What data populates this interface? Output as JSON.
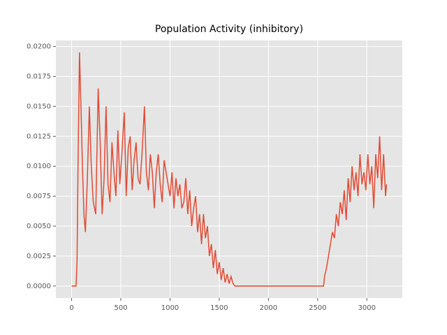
{
  "chart_data": {
    "type": "line",
    "title": "Population Activity (inhibitory)",
    "x": [
      0,
      45,
      55,
      65,
      80,
      95,
      110,
      125,
      140,
      160,
      180,
      200,
      220,
      245,
      270,
      290,
      310,
      330,
      350,
      370,
      390,
      410,
      430,
      450,
      470,
      490,
      510,
      535,
      555,
      575,
      595,
      615,
      635,
      655,
      675,
      695,
      715,
      740,
      760,
      780,
      800,
      820,
      840,
      860,
      880,
      900,
      920,
      940,
      960,
      980,
      1000,
      1020,
      1040,
      1060,
      1080,
      1100,
      1120,
      1140,
      1160,
      1180,
      1200,
      1220,
      1240,
      1260,
      1280,
      1300,
      1320,
      1340,
      1360,
      1380,
      1400,
      1420,
      1440,
      1460,
      1480,
      1500,
      1520,
      1540,
      1560,
      1580,
      1600,
      1620,
      1640,
      1660,
      2560,
      2570,
      2590,
      2610,
      2630,
      2650,
      2670,
      2690,
      2710,
      2730,
      2750,
      2770,
      2790,
      2810,
      2830,
      2850,
      2870,
      2890,
      2910,
      2930,
      2950,
      2970,
      2990,
      3010,
      3030,
      3050,
      3070,
      3090,
      3110,
      3130,
      3150,
      3170,
      3190,
      3200
    ],
    "series": [
      {
        "color": "#e24a33",
        "values": [
          0,
          0,
          0.002,
          0.01,
          0.0195,
          0.015,
          0.01,
          0.006,
          0.0045,
          0.009,
          0.015,
          0.01,
          0.007,
          0.006,
          0.0165,
          0.012,
          0.006,
          0.009,
          0.015,
          0.0085,
          0.007,
          0.012,
          0.0095,
          0.0075,
          0.013,
          0.0085,
          0.011,
          0.0145,
          0.0075,
          0.0115,
          0.0125,
          0.008,
          0.0105,
          0.012,
          0.009,
          0.0085,
          0.011,
          0.015,
          0.0095,
          0.008,
          0.011,
          0.0095,
          0.0065,
          0.0095,
          0.011,
          0.0085,
          0.007,
          0.0105,
          0.0095,
          0.0085,
          0.0075,
          0.0095,
          0.0065,
          0.009,
          0.0075,
          0.0085,
          0.0065,
          0.007,
          0.009,
          0.006,
          0.008,
          0.005,
          0.0065,
          0.0075,
          0.0045,
          0.006,
          0.0035,
          0.006,
          0.004,
          0.005,
          0.0025,
          0.0035,
          0.0015,
          0.003,
          0.001,
          0.002,
          0.0005,
          0.0015,
          0.0003,
          0.001,
          0.0002,
          0.0008,
          0.0002,
          0,
          0,
          0.0008,
          0.0015,
          0.0025,
          0.0035,
          0.0045,
          0.004,
          0.006,
          0.005,
          0.007,
          0.006,
          0.008,
          0.0055,
          0.009,
          0.007,
          0.01,
          0.008,
          0.0095,
          0.0075,
          0.011,
          0.0085,
          0.0095,
          0.008,
          0.011,
          0.0085,
          0.01,
          0.0065,
          0.011,
          0.009,
          0.0125,
          0.008,
          0.011,
          0.0075,
          0.0085
        ]
      }
    ],
    "xlim": [
      -160,
      3360
    ],
    "ylim": [
      -0.001,
      0.0205
    ],
    "xticks": [
      0,
      500,
      1000,
      1500,
      2000,
      2500,
      3000
    ],
    "yticks": [
      {
        "value": 0,
        "label": "0.0000"
      },
      {
        "value": 0.0025,
        "label": "0.0025"
      },
      {
        "value": 0.005,
        "label": "0.0050"
      },
      {
        "value": 0.0075,
        "label": "0.0075"
      },
      {
        "value": 0.01,
        "label": "0.0100"
      },
      {
        "value": 0.0125,
        "label": "0.0125"
      },
      {
        "value": 0.015,
        "label": "0.0150"
      },
      {
        "value": 0.0175,
        "label": "0.0175"
      },
      {
        "value": 0.02,
        "label": "0.0200"
      }
    ],
    "grid": true
  }
}
